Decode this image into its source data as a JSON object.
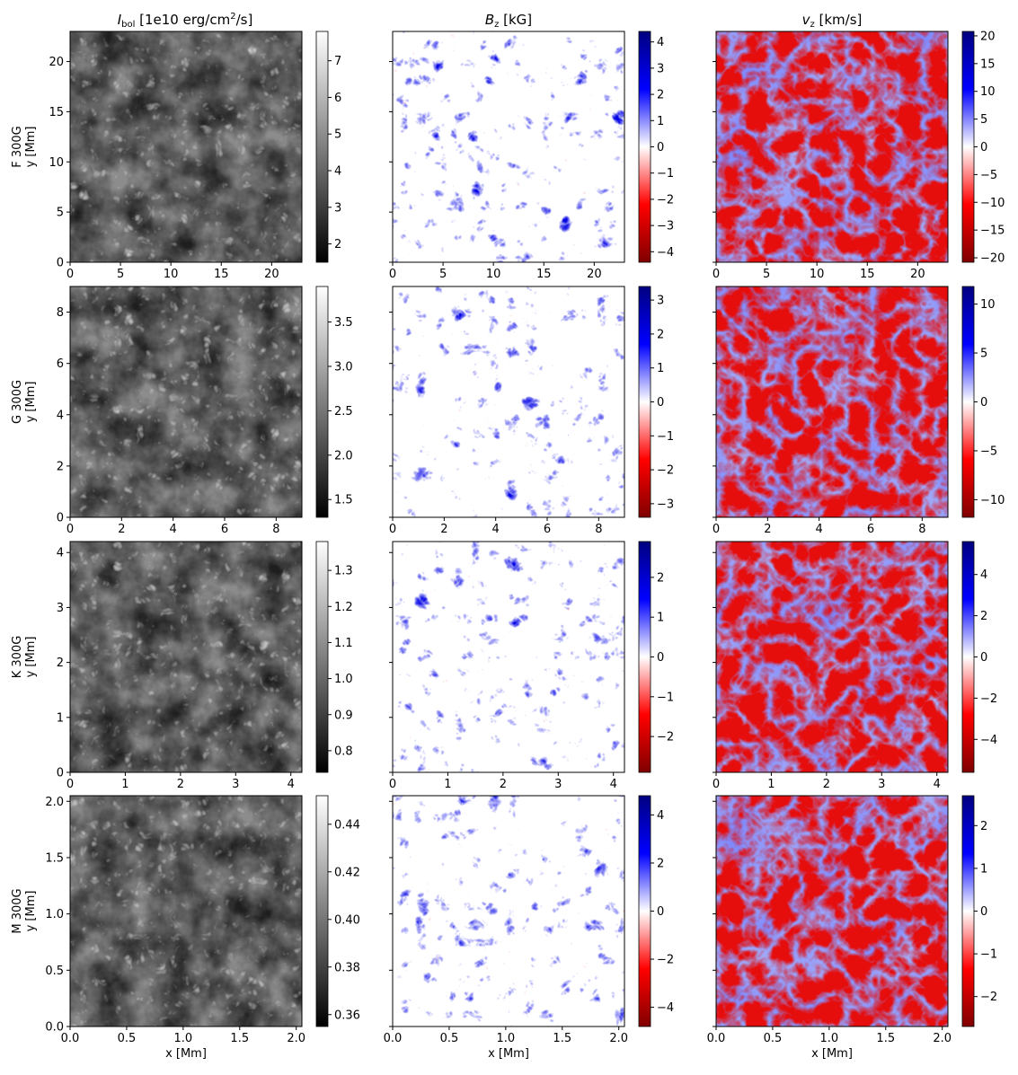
{
  "colors": {
    "grey_low": "#000000",
    "grey_high": "#ffffff",
    "div_neg": "#800000",
    "div_mid_neg": "#ff0000",
    "div_zero": "#ffffff",
    "div_mid_pos": "#0000ff",
    "div_pos": "#000080"
  },
  "chart_data": {
    "type": "heatmap",
    "columns": [
      {
        "title_main": "I",
        "title_sub": "bol",
        "title_rest": " [1e10 erg/cm",
        "title_sup": "2",
        "title_end": "/s]",
        "cmap": "gray"
      },
      {
        "title_main": "B",
        "title_sub": "z",
        "title_rest": " [kG]",
        "title_sup": "",
        "title_end": "",
        "cmap": "seismic_r"
      },
      {
        "title_main": "v",
        "title_sub": "z",
        "title_rest": " [km/s]",
        "title_sup": "",
        "title_end": "",
        "cmap": "seismic_r"
      }
    ],
    "xlabel": "x [Mm]",
    "rows": [
      {
        "row_label": "F 300G",
        "ylabel": "y [Mm]",
        "extent": 23,
        "xticks": [
          "0",
          "5",
          "10",
          "15",
          "20"
        ],
        "xtick_values": [
          0,
          5,
          10,
          15,
          20
        ],
        "yticks": [
          "0",
          "5",
          "10",
          "15",
          "20"
        ],
        "ytick_values": [
          0,
          5,
          10,
          15,
          20
        ],
        "panels": [
          {
            "colorbar_range": [
              1.5,
              7.8
            ],
            "ticks": [
              "2",
              "3",
              "4",
              "5",
              "6",
              "7"
            ],
            "tick_values": [
              2,
              3,
              4,
              5,
              6,
              7
            ]
          },
          {
            "colorbar_range": [
              -4.4,
              4.4
            ],
            "ticks": [
              "−4",
              "−3",
              "−2",
              "−1",
              "0",
              "1",
              "2",
              "3",
              "4"
            ],
            "tick_values": [
              -4,
              -3,
              -2,
              -1,
              0,
              1,
              2,
              3,
              4
            ]
          },
          {
            "colorbar_range": [
              -20.8,
              20.8
            ],
            "ticks": [
              "−20",
              "−15",
              "−10",
              "−5",
              "0",
              "5",
              "10",
              "15",
              "20"
            ],
            "tick_values": [
              -20,
              -15,
              -10,
              -5,
              0,
              5,
              10,
              15,
              20
            ]
          }
        ]
      },
      {
        "row_label": "G 300G",
        "ylabel": "y [Mm]",
        "extent": 9,
        "xticks": [
          "0",
          "2",
          "4",
          "6",
          "8"
        ],
        "xtick_values": [
          0,
          2,
          4,
          6,
          8
        ],
        "yticks": [
          "0",
          "2",
          "4",
          "6",
          "8"
        ],
        "ytick_values": [
          0,
          2,
          4,
          6,
          8
        ],
        "panels": [
          {
            "colorbar_range": [
              1.3,
              3.9
            ],
            "ticks": [
              "1.5",
              "2.0",
              "2.5",
              "3.0",
              "3.5"
            ],
            "tick_values": [
              1.5,
              2.0,
              2.5,
              3.0,
              3.5
            ]
          },
          {
            "colorbar_range": [
              -3.4,
              3.4
            ],
            "ticks": [
              "−3",
              "−2",
              "−1",
              "0",
              "1",
              "2",
              "3"
            ],
            "tick_values": [
              -3,
              -2,
              -1,
              0,
              1,
              2,
              3
            ]
          },
          {
            "colorbar_range": [
              -11.8,
              11.8
            ],
            "ticks": [
              "−10",
              "−5",
              "0",
              "5",
              "10"
            ],
            "tick_values": [
              -10,
              -5,
              0,
              5,
              10
            ]
          }
        ]
      },
      {
        "row_label": "K 300G",
        "ylabel": "y [Mm]",
        "extent": 4.2,
        "xticks": [
          "0",
          "1",
          "2",
          "3",
          "4"
        ],
        "xtick_values": [
          0,
          1,
          2,
          3,
          4
        ],
        "yticks": [
          "0",
          "1",
          "2",
          "3",
          "4"
        ],
        "ytick_values": [
          0,
          1,
          2,
          3,
          4
        ],
        "panels": [
          {
            "colorbar_range": [
              0.74,
              1.38
            ],
            "ticks": [
              "0.8",
              "0.9",
              "1.0",
              "1.1",
              "1.2",
              "1.3"
            ],
            "tick_values": [
              0.8,
              0.9,
              1.0,
              1.1,
              1.2,
              1.3
            ]
          },
          {
            "colorbar_range": [
              -2.9,
              2.9
            ],
            "ticks": [
              "−2",
              "−1",
              "0",
              "1",
              "2"
            ],
            "tick_values": [
              -2,
              -1,
              0,
              1,
              2
            ]
          },
          {
            "colorbar_range": [
              -5.6,
              5.6
            ],
            "ticks": [
              "−4",
              "−2",
              "0",
              "2",
              "4"
            ],
            "tick_values": [
              -4,
              -2,
              0,
              2,
              4
            ]
          }
        ]
      },
      {
        "row_label": "M 300G",
        "ylabel": "y [Mm]",
        "extent": 2.05,
        "xticks": [
          "0.0",
          "0.5",
          "1.0",
          "1.5",
          "2.0"
        ],
        "xtick_values": [
          0,
          0.5,
          1.0,
          1.5,
          2.0
        ],
        "yticks": [
          "0.0",
          "0.5",
          "1.0",
          "1.5",
          "2.0"
        ],
        "ytick_values": [
          0,
          0.5,
          1.0,
          1.5,
          2.0
        ],
        "panels": [
          {
            "colorbar_range": [
              0.355,
              0.452
            ],
            "ticks": [
              "0.36",
              "0.38",
              "0.40",
              "0.42",
              "0.44"
            ],
            "tick_values": [
              0.36,
              0.38,
              0.4,
              0.42,
              0.44
            ]
          },
          {
            "colorbar_range": [
              -4.8,
              4.8
            ],
            "ticks": [
              "−4",
              "−2",
              "0",
              "2",
              "4"
            ],
            "tick_values": [
              -4,
              -2,
              0,
              2,
              4
            ]
          },
          {
            "colorbar_range": [
              -2.7,
              2.7
            ],
            "ticks": [
              "−2",
              "−1",
              "0",
              "1",
              "2"
            ],
            "tick_values": [
              -2,
              -1,
              0,
              1,
              2
            ]
          }
        ]
      }
    ]
  }
}
